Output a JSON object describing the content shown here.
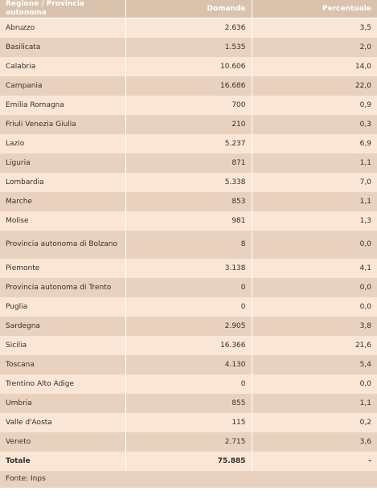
{
  "table": {
    "header": [
      "Regione / Provincia autonoma",
      "Domande",
      "Percentuale"
    ],
    "rows": [
      [
        "Abruzzo",
        "2.636",
        "3,5"
      ],
      [
        "Basilicata",
        "1.535",
        "2,0"
      ],
      [
        "Calabria",
        "10.606",
        "14,0"
      ],
      [
        "Campania",
        "16.686",
        "22,0"
      ],
      [
        "Emilia Romagna",
        "700",
        "0,9"
      ],
      [
        "Friuli Venezia Giulia",
        "210",
        "0,3"
      ],
      [
        "Lazio",
        "5.237",
        "6,9"
      ],
      [
        "Liguria",
        "871",
        "1,1"
      ],
      [
        "Lombardia",
        "5.338",
        "7,0"
      ],
      [
        "Marche",
        "853",
        "1,1"
      ],
      [
        "Molise",
        "981",
        "1,3"
      ],
      [
        "Provincia autonoma di Bolzano",
        "8",
        "0,0"
      ],
      [
        "Piemonte",
        "3.138",
        "4,1"
      ],
      [
        "Provincia autonoma di Trento",
        "0",
        "0,0"
      ],
      [
        "Puglia",
        "0",
        "0,0"
      ],
      [
        "Sardegna",
        "2.905",
        "3,8"
      ],
      [
        "Sicilia",
        "16.366",
        "21,6"
      ],
      [
        "Toscana",
        "4.130",
        "5,4"
      ],
      [
        "Trentino Alto Adige",
        "0",
        "0,0"
      ],
      [
        "Umbria",
        "855",
        "1,1"
      ],
      [
        "Valle d'Aosta",
        "115",
        "0,2"
      ],
      [
        "Veneto",
        "2.715",
        "3,6"
      ]
    ],
    "total": [
      "Totale",
      "75.885",
      "-"
    ],
    "source": "Fonte: Inps"
  }
}
